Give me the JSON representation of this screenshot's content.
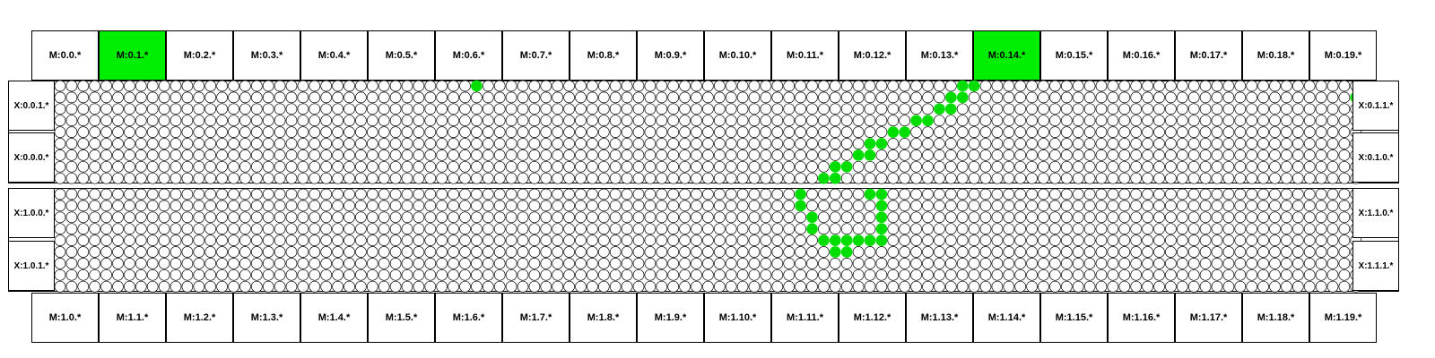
{
  "modules_top": [
    "M:0.0.*",
    "M:0.1.*",
    "M:0.2.*",
    "M:0.3.*",
    "M:0.4.*",
    "M:0.5.*",
    "M:0.6.*",
    "M:0.7.*",
    "M:0.8.*",
    "M:0.9.*",
    "M:0.10.*",
    "M:0.11.*",
    "M:0.12.*",
    "M:0.13.*",
    "M:0.14.*",
    "M:0.15.*",
    "M:0.16.*",
    "M:0.17.*",
    "M:0.18.*",
    "M:0.19.*"
  ],
  "modules_bottom": [
    "M:1.0.*",
    "M:1.1.*",
    "M:1.2.*",
    "M:1.3.*",
    "M:1.4.*",
    "M:1.5.*",
    "M:1.6.*",
    "M:1.7.*",
    "M:1.8.*",
    "M:1.9.*",
    "M:1.10.*",
    "M:1.11.*",
    "M:1.12.*",
    "M:1.13.*",
    "M:1.14.*",
    "M:1.15.*",
    "M:1.16.*",
    "M:1.17.*",
    "M:1.18.*",
    "M:1.19.*"
  ],
  "active_modules_top": [
    1,
    14
  ],
  "active_modules_bottom": [],
  "x_labels": {
    "left": [
      "X:0.0.1.*",
      "X:0.0.0.*",
      "X:1.0.0.*",
      "X:1.0.1.*"
    ],
    "right": [
      "X:0.1.1.*",
      "X:0.1.0.*",
      "X:1.1.0.*",
      "X:1.1.1.*"
    ]
  },
  "grid": {
    "columns": 112,
    "rows_per_panel": 9
  },
  "highlight_color": "#00dd00",
  "highlighted_cells": {
    "top_panel": [
      [
        36,
        0
      ],
      [
        78,
        0
      ],
      [
        79,
        0
      ],
      [
        77,
        1
      ],
      [
        78,
        1
      ],
      [
        112,
        1
      ],
      [
        76,
        2
      ],
      [
        77,
        2
      ],
      [
        75,
        3
      ],
      [
        74,
        3
      ],
      [
        72,
        4
      ],
      [
        73,
        4
      ],
      [
        70,
        5
      ],
      [
        71,
        5
      ],
      [
        69,
        6
      ],
      [
        70,
        6
      ],
      [
        67,
        7
      ],
      [
        68,
        7
      ],
      [
        66,
        8
      ],
      [
        67,
        8
      ]
    ],
    "bottom_panel": [
      [
        64,
        0
      ],
      [
        70,
        0
      ],
      [
        71,
        0
      ],
      [
        64,
        1
      ],
      [
        71,
        1
      ],
      [
        65,
        2
      ],
      [
        71,
        2
      ],
      [
        65,
        3
      ],
      [
        71,
        3
      ],
      [
        66,
        4
      ],
      [
        67,
        4
      ],
      [
        68,
        4
      ],
      [
        69,
        4
      ],
      [
        70,
        4
      ],
      [
        71,
        4
      ],
      [
        67,
        5
      ],
      [
        68,
        5
      ]
    ]
  }
}
